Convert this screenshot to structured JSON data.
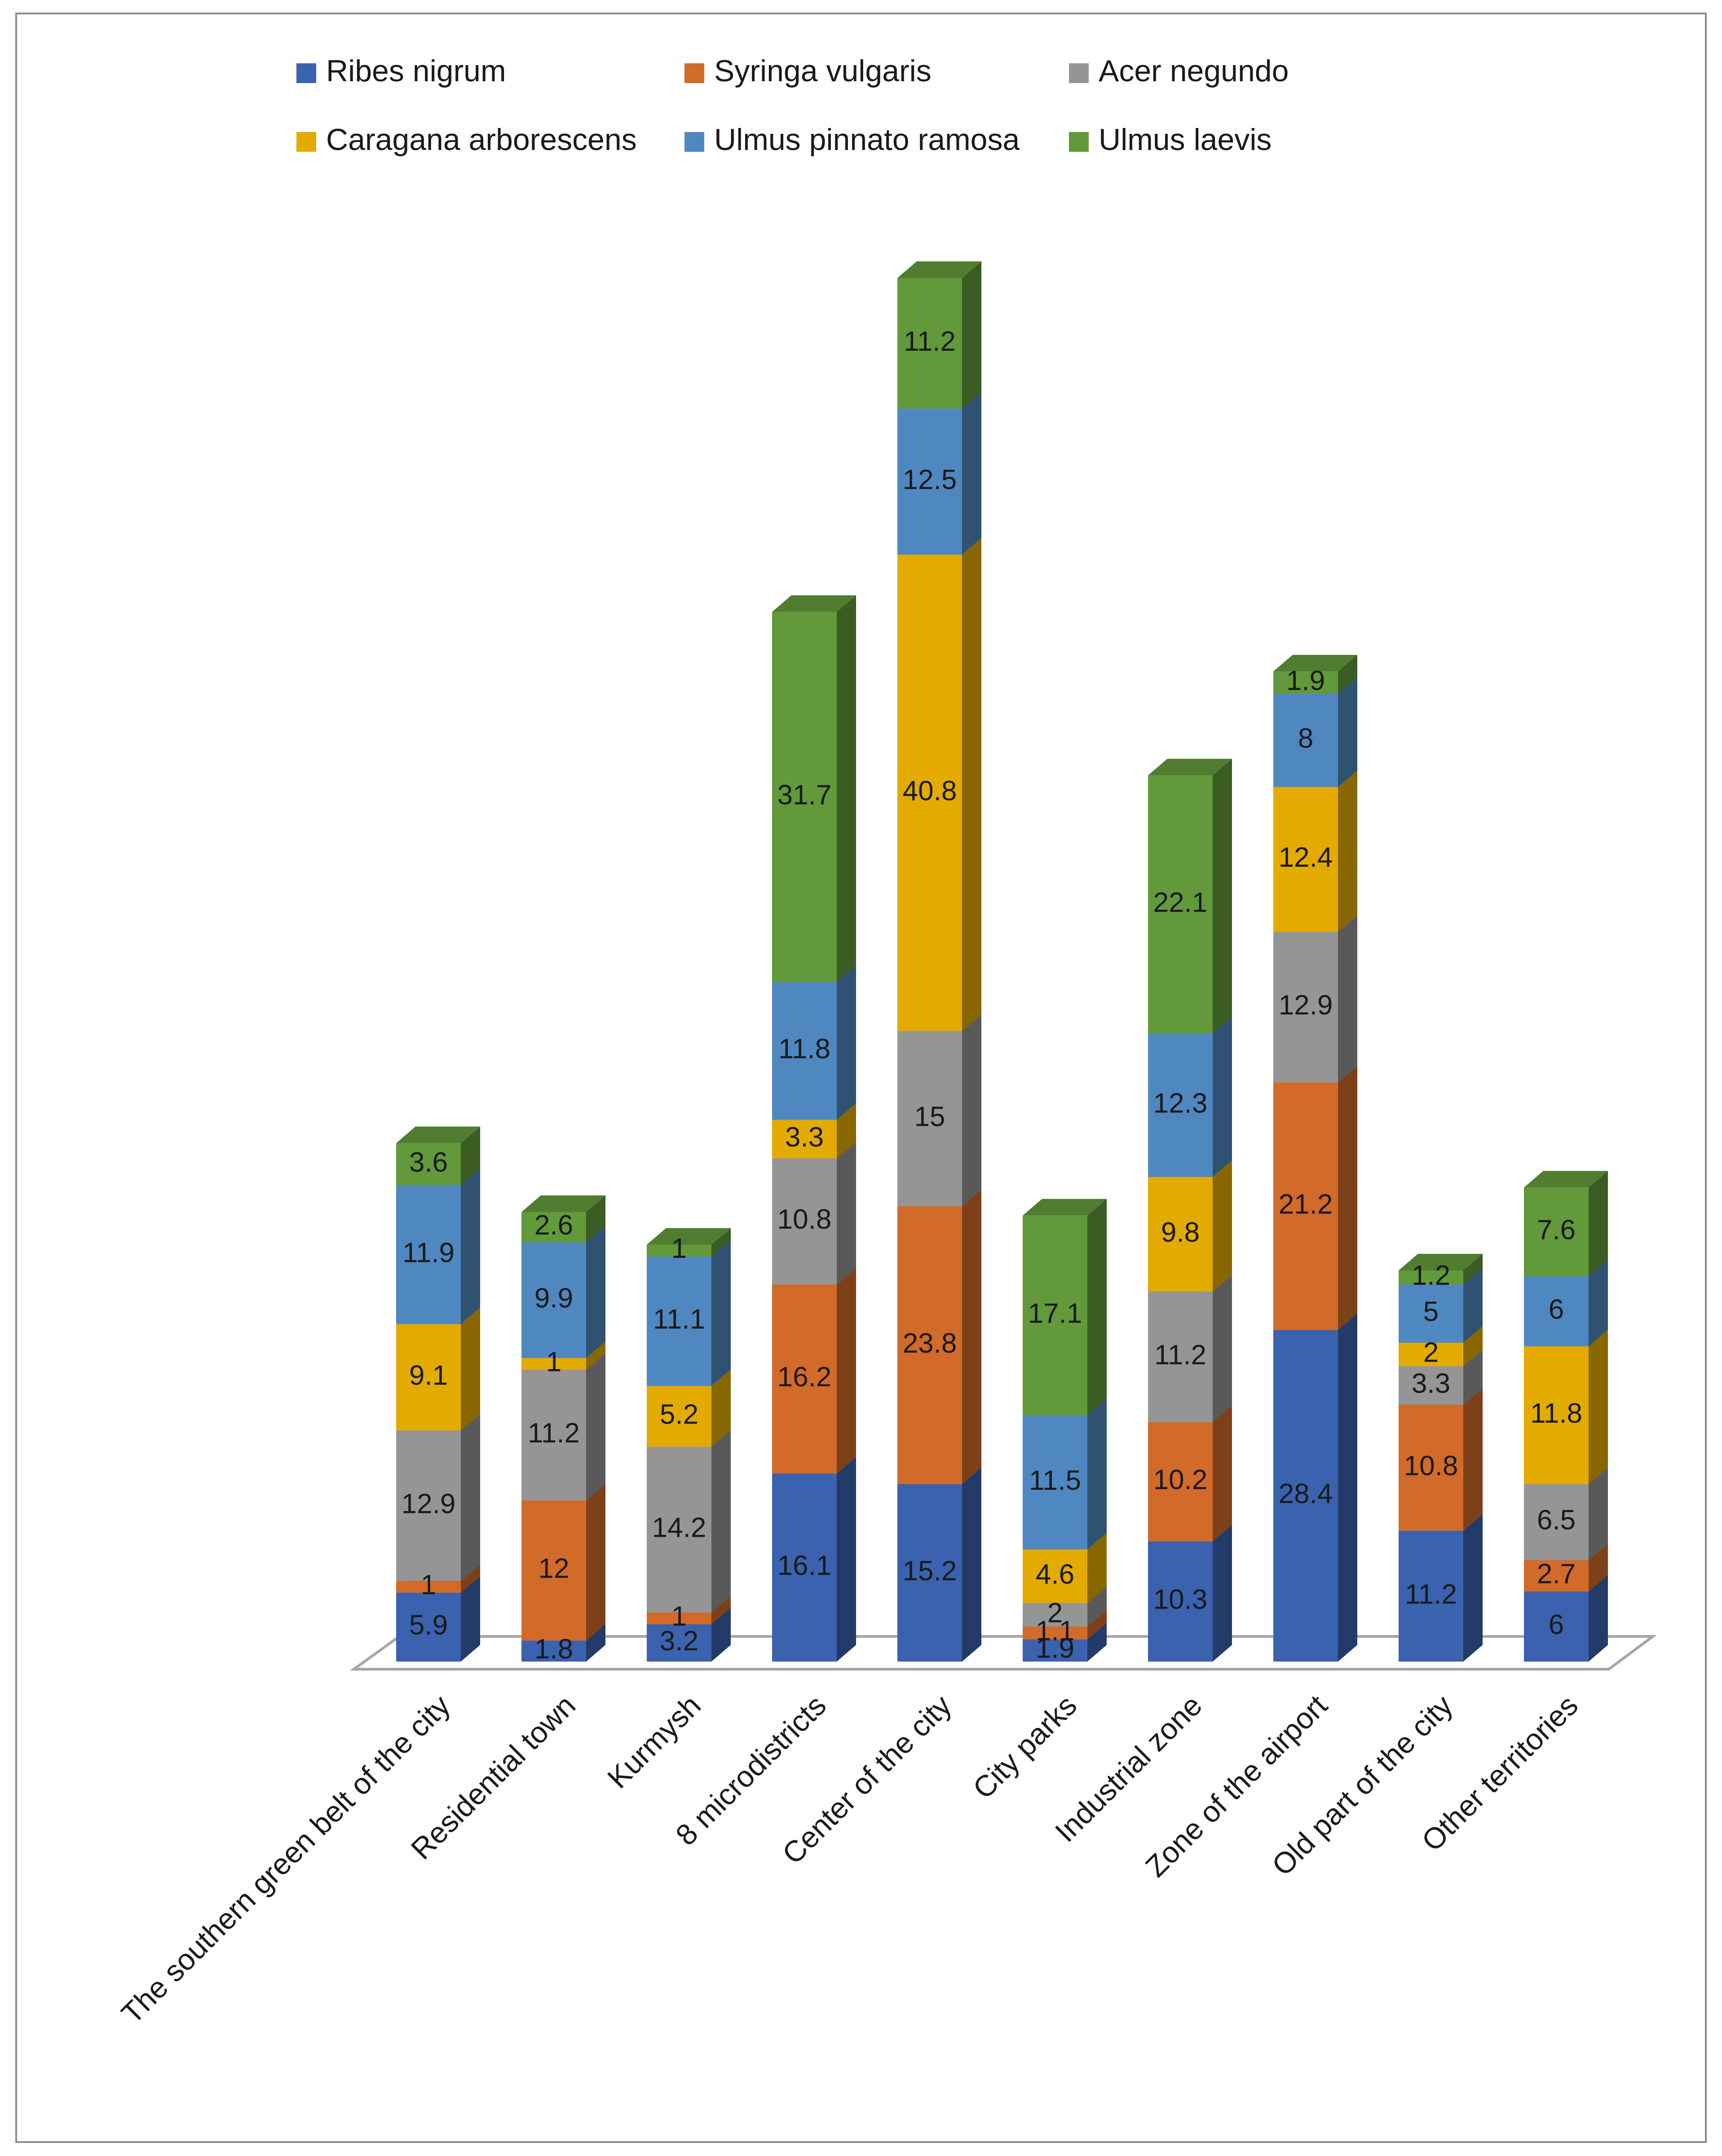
{
  "chart_data": {
    "type": "bar3d_stacked",
    "categories": [
      "The southern green belt of the city",
      "Residential town",
      "Kurmysh",
      "8 microdistricts",
      "Center of the city",
      "City parks",
      "Industrial zone",
      "Zone of the airport",
      "Old part of the city",
      "Other territories"
    ],
    "series": [
      {
        "name": "Ribes nigrum",
        "color": "#3a62ae",
        "values": [
          5.9,
          1.8,
          3.2,
          16.1,
          15.2,
          1.9,
          10.3,
          28.4,
          11.2,
          6
        ]
      },
      {
        "name": "Syringa vulgaris",
        "color": "#d26a2a",
        "values": [
          1,
          12,
          1,
          16.2,
          23.8,
          1.1,
          10.2,
          21.2,
          10.8,
          2.7
        ]
      },
      {
        "name": "Acer negundo",
        "color": "#959595",
        "values": [
          12.9,
          11.2,
          14.2,
          10.8,
          15,
          2,
          11.2,
          12.9,
          3.3,
          6.5
        ]
      },
      {
        "name": "Caragana arborescens",
        "color": "#e3aa00",
        "values": [
          9.1,
          1,
          5.2,
          3.3,
          40.8,
          4.6,
          9.8,
          12.4,
          2,
          11.8
        ]
      },
      {
        "name": "Ulmus pinnato ramosa",
        "color": "#4f88c0",
        "values": [
          11.9,
          9.9,
          11.1,
          11.8,
          12.5,
          11.5,
          12.3,
          8,
          5,
          6
        ]
      },
      {
        "name": "Ulmus laevis",
        "color": "#62993b",
        "values": [
          3.6,
          2.6,
          1,
          31.7,
          11.2,
          17.1,
          22.1,
          1.9,
          1.2,
          7.6
        ]
      }
    ],
    "legend": "top"
  }
}
